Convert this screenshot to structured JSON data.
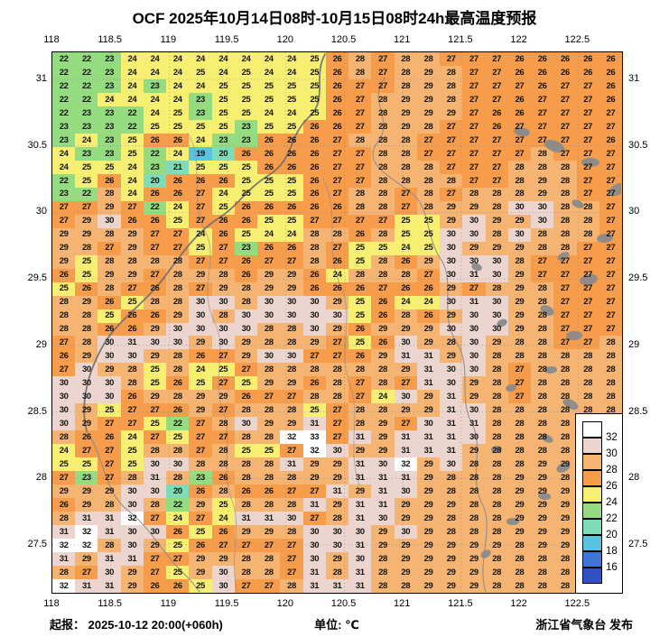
{
  "chart_data": {
    "type": "heatmap",
    "title": "OCF 2025年10月14日08时-10月15日08时24h最高温度预报",
    "unit": "℃",
    "lon_ticks": [
      "118",
      "118.5",
      "119",
      "119.5",
      "120",
      "120.5",
      "121",
      "121.5",
      "122",
      "122.5"
    ],
    "lat_ticks": [
      "31",
      "30.5",
      "30",
      "29.5",
      "29",
      "28.5",
      "28",
      "27.5"
    ],
    "grid_rows": 40,
    "grid_cols": 25,
    "values": [
      [
        22,
        22,
        23,
        24,
        24,
        24,
        24,
        24,
        24,
        24,
        24,
        25,
        26,
        28,
        27,
        28,
        28,
        27,
        27,
        27,
        26,
        26,
        26,
        26,
        26
      ],
      [
        22,
        22,
        23,
        24,
        24,
        24,
        25,
        24,
        25,
        24,
        24,
        25,
        26,
        28,
        27,
        28,
        29,
        28,
        27,
        27,
        26,
        26,
        26,
        26,
        26
      ],
      [
        22,
        22,
        23,
        24,
        23,
        24,
        24,
        25,
        25,
        25,
        25,
        25,
        26,
        27,
        27,
        28,
        29,
        28,
        27,
        27,
        27,
        26,
        27,
        27,
        26
      ],
      [
        22,
        22,
        24,
        24,
        24,
        24,
        23,
        25,
        25,
        25,
        25,
        25,
        26,
        27,
        28,
        29,
        29,
        28,
        27,
        27,
        26,
        27,
        27,
        27,
        26
      ],
      [
        22,
        23,
        23,
        22,
        24,
        25,
        23,
        25,
        25,
        24,
        24,
        25,
        26,
        27,
        28,
        29,
        29,
        29,
        27,
        26,
        26,
        27,
        27,
        27,
        27
      ],
      [
        23,
        23,
        23,
        22,
        25,
        25,
        25,
        25,
        23,
        25,
        25,
        26,
        26,
        27,
        28,
        29,
        28,
        27,
        27,
        26,
        27,
        27,
        27,
        27,
        27
      ],
      [
        23,
        24,
        23,
        25,
        26,
        26,
        24,
        23,
        23,
        26,
        26,
        26,
        27,
        28,
        28,
        28,
        27,
        27,
        27,
        27,
        27,
        27,
        27,
        27,
        26
      ],
      [
        24,
        23,
        23,
        25,
        22,
        24,
        19,
        20,
        26,
        26,
        26,
        26,
        27,
        27,
        28,
        28,
        27,
        27,
        27,
        27,
        27,
        28,
        27,
        27,
        27
      ],
      [
        24,
        25,
        25,
        24,
        23,
        21,
        25,
        25,
        25,
        26,
        26,
        26,
        27,
        27,
        28,
        28,
        28,
        27,
        27,
        27,
        28,
        28,
        28,
        27,
        27
      ],
      [
        22,
        25,
        26,
        24,
        20,
        26,
        26,
        26,
        25,
        25,
        25,
        26,
        27,
        27,
        28,
        28,
        28,
        28,
        27,
        27,
        28,
        29,
        28,
        27,
        27
      ],
      [
        23,
        22,
        28,
        24,
        26,
        26,
        27,
        24,
        25,
        25,
        25,
        26,
        27,
        28,
        28,
        27,
        28,
        27,
        28,
        28,
        28,
        29,
        28,
        27,
        27
      ],
      [
        27,
        27,
        29,
        27,
        22,
        24,
        27,
        25,
        26,
        26,
        26,
        26,
        26,
        28,
        28,
        27,
        28,
        29,
        29,
        28,
        30,
        30,
        28,
        28,
        27
      ],
      [
        27,
        29,
        30,
        26,
        26,
        25,
        27,
        26,
        26,
        25,
        25,
        27,
        27,
        27,
        27,
        25,
        25,
        29,
        30,
        29,
        29,
        30,
        28,
        28,
        27
      ],
      [
        29,
        29,
        28,
        29,
        27,
        27,
        24,
        26,
        25,
        24,
        24,
        28,
        28,
        26,
        28,
        25,
        25,
        30,
        30,
        28,
        30,
        28,
        28,
        28,
        27
      ],
      [
        29,
        28,
        27,
        29,
        27,
        27,
        25,
        27,
        23,
        26,
        26,
        28,
        27,
        25,
        25,
        24,
        25,
        30,
        29,
        29,
        29,
        28,
        28,
        27,
        27
      ],
      [
        29,
        25,
        28,
        28,
        28,
        28,
        27,
        27,
        26,
        27,
        27,
        28,
        26,
        25,
        28,
        26,
        29,
        30,
        30,
        30,
        28,
        27,
        27,
        27,
        27
      ],
      [
        26,
        25,
        29,
        29,
        27,
        28,
        29,
        28,
        26,
        29,
        29,
        26,
        24,
        28,
        28,
        28,
        27,
        30,
        31,
        30,
        29,
        27,
        27,
        27,
        27
      ],
      [
        25,
        26,
        28,
        27,
        26,
        28,
        27,
        29,
        28,
        29,
        29,
        26,
        26,
        26,
        27,
        26,
        26,
        29,
        27,
        28,
        29,
        28,
        27,
        27,
        27
      ],
      [
        28,
        29,
        26,
        25,
        28,
        28,
        30,
        30,
        28,
        30,
        30,
        30,
        29,
        25,
        26,
        24,
        24,
        30,
        31,
        30,
        29,
        28,
        27,
        27,
        27
      ],
      [
        28,
        28,
        25,
        26,
        26,
        29,
        30,
        28,
        30,
        30,
        30,
        30,
        30,
        25,
        26,
        28,
        26,
        29,
        30,
        30,
        29,
        28,
        27,
        27,
        27
      ],
      [
        28,
        28,
        26,
        26,
        29,
        30,
        30,
        30,
        30,
        28,
        28,
        30,
        29,
        26,
        29,
        29,
        29,
        30,
        30,
        30,
        29,
        28,
        27,
        27,
        27
      ],
      [
        27,
        28,
        30,
        31,
        30,
        30,
        29,
        30,
        29,
        28,
        28,
        29,
        27,
        25,
        26,
        30,
        29,
        28,
        30,
        29,
        28,
        28,
        27,
        27,
        28
      ],
      [
        26,
        29,
        30,
        30,
        29,
        28,
        26,
        27,
        29,
        30,
        30,
        27,
        27,
        26,
        29,
        31,
        31,
        29,
        30,
        28,
        28,
        28,
        28,
        28,
        28
      ],
      [
        27,
        30,
        29,
        28,
        25,
        28,
        24,
        25,
        27,
        28,
        28,
        28,
        28,
        28,
        28,
        29,
        31,
        30,
        30,
        28,
        27,
        28,
        28,
        28,
        28
      ],
      [
        30,
        30,
        30,
        28,
        25,
        26,
        25,
        27,
        25,
        29,
        29,
        26,
        28,
        27,
        28,
        27,
        31,
        30,
        29,
        28,
        27,
        28,
        28,
        28,
        28
      ],
      [
        30,
        30,
        30,
        26,
        29,
        28,
        29,
        29,
        26,
        27,
        27,
        28,
        28,
        27,
        24,
        30,
        29,
        31,
        29,
        28,
        27,
        28,
        28,
        28,
        28
      ],
      [
        30,
        29,
        25,
        27,
        27,
        26,
        29,
        27,
        28,
        28,
        28,
        25,
        27,
        28,
        28,
        29,
        29,
        31,
        30,
        28,
        28,
        28,
        28,
        28,
        28
      ],
      [
        30,
        29,
        27,
        27,
        25,
        22,
        27,
        28,
        30,
        29,
        29,
        31,
        27,
        28,
        29,
        27,
        30,
        31,
        31,
        28,
        28,
        28,
        28,
        28,
        28
      ],
      [
        28,
        26,
        26,
        24,
        27,
        25,
        27,
        27,
        28,
        28,
        32,
        33,
        27,
        31,
        29,
        31,
        31,
        31,
        30,
        28,
        28,
        28,
        28,
        28,
        28
      ],
      [
        24,
        27,
        27,
        25,
        28,
        28,
        27,
        28,
        25,
        25,
        27,
        32,
        30,
        29,
        29,
        31,
        31,
        31,
        29,
        28,
        28,
        28,
        28,
        28,
        28
      ],
      [
        25,
        25,
        27,
        25,
        30,
        30,
        28,
        28,
        28,
        28,
        31,
        29,
        29,
        31,
        30,
        32,
        29,
        30,
        28,
        28,
        28,
        29,
        29,
        29,
        29
      ],
      [
        27,
        23,
        27,
        28,
        31,
        28,
        23,
        26,
        28,
        28,
        28,
        29,
        29,
        31,
        31,
        31,
        29,
        28,
        28,
        28,
        29,
        29,
        28,
        28,
        28
      ],
      [
        29,
        29,
        29,
        30,
        30,
        20,
        26,
        28,
        26,
        26,
        27,
        27,
        31,
        29,
        31,
        30,
        29,
        28,
        28,
        28,
        29,
        29,
        29,
        29,
        29
      ],
      [
        26,
        29,
        28,
        30,
        28,
        22,
        29,
        25,
        28,
        28,
        28,
        31,
        29,
        31,
        31,
        29,
        29,
        29,
        28,
        28,
        29,
        29,
        29,
        29,
        29
      ],
      [
        28,
        31,
        31,
        32,
        27,
        24,
        27,
        24,
        31,
        31,
        30,
        27,
        28,
        31,
        30,
        29,
        29,
        28,
        28,
        28,
        29,
        29,
        29,
        29,
        29
      ],
      [
        31,
        32,
        31,
        30,
        30,
        26,
        25,
        26,
        29,
        29,
        28,
        30,
        30,
        30,
        29,
        30,
        29,
        28,
        28,
        28,
        29,
        29,
        29,
        29,
        29
      ],
      [
        32,
        32,
        28,
        30,
        29,
        25,
        26,
        27,
        27,
        27,
        27,
        30,
        30,
        31,
        29,
        29,
        29,
        29,
        29,
        29,
        28,
        29,
        29,
        29,
        29
      ],
      [
        31,
        29,
        31,
        31,
        27,
        27,
        29,
        29,
        28,
        28,
        27,
        30,
        29,
        30,
        28,
        29,
        29,
        29,
        29,
        28,
        28,
        28,
        28,
        28,
        28
      ],
      [
        28,
        27,
        30,
        29,
        27,
        25,
        29,
        30,
        28,
        28,
        27,
        31,
        28,
        31,
        28,
        29,
        29,
        29,
        29,
        28,
        28,
        28,
        28,
        28,
        28
      ],
      [
        32,
        31,
        31,
        29,
        26,
        26,
        25,
        30,
        27,
        27,
        28,
        31,
        31,
        31,
        28,
        28,
        29,
        29,
        29,
        28,
        28,
        28,
        28,
        28,
        28
      ]
    ],
    "colorbar": {
      "labels": [
        "32",
        "30",
        "28",
        "26",
        "24",
        "22",
        "20",
        "18",
        "16"
      ],
      "bands": [
        {
          "gte": 32,
          "color": "#ffffff"
        },
        {
          "gte": 30,
          "color": "#ecd5cf"
        },
        {
          "gte": 28,
          "color": "#f5b472"
        },
        {
          "gte": 26,
          "color": "#f79c4a"
        },
        {
          "gte": 24,
          "color": "#f6ef72"
        },
        {
          "gte": 22,
          "color": "#95dc81"
        },
        {
          "gte": 20,
          "color": "#7fdcb9"
        },
        {
          "gte": 18,
          "color": "#5ac3e2"
        },
        {
          "gte": 16,
          "color": "#3e77d8"
        },
        {
          "gte": -99,
          "color": "#3152c4"
        }
      ]
    }
  },
  "footer": {
    "left": "起报： 2025-10-12 20:00(+060h)",
    "center": "单位: ℃",
    "right": "浙江省气象台 发布"
  },
  "boundary_color": "#8a8a8a",
  "graticule_color": "#7a7a7a"
}
